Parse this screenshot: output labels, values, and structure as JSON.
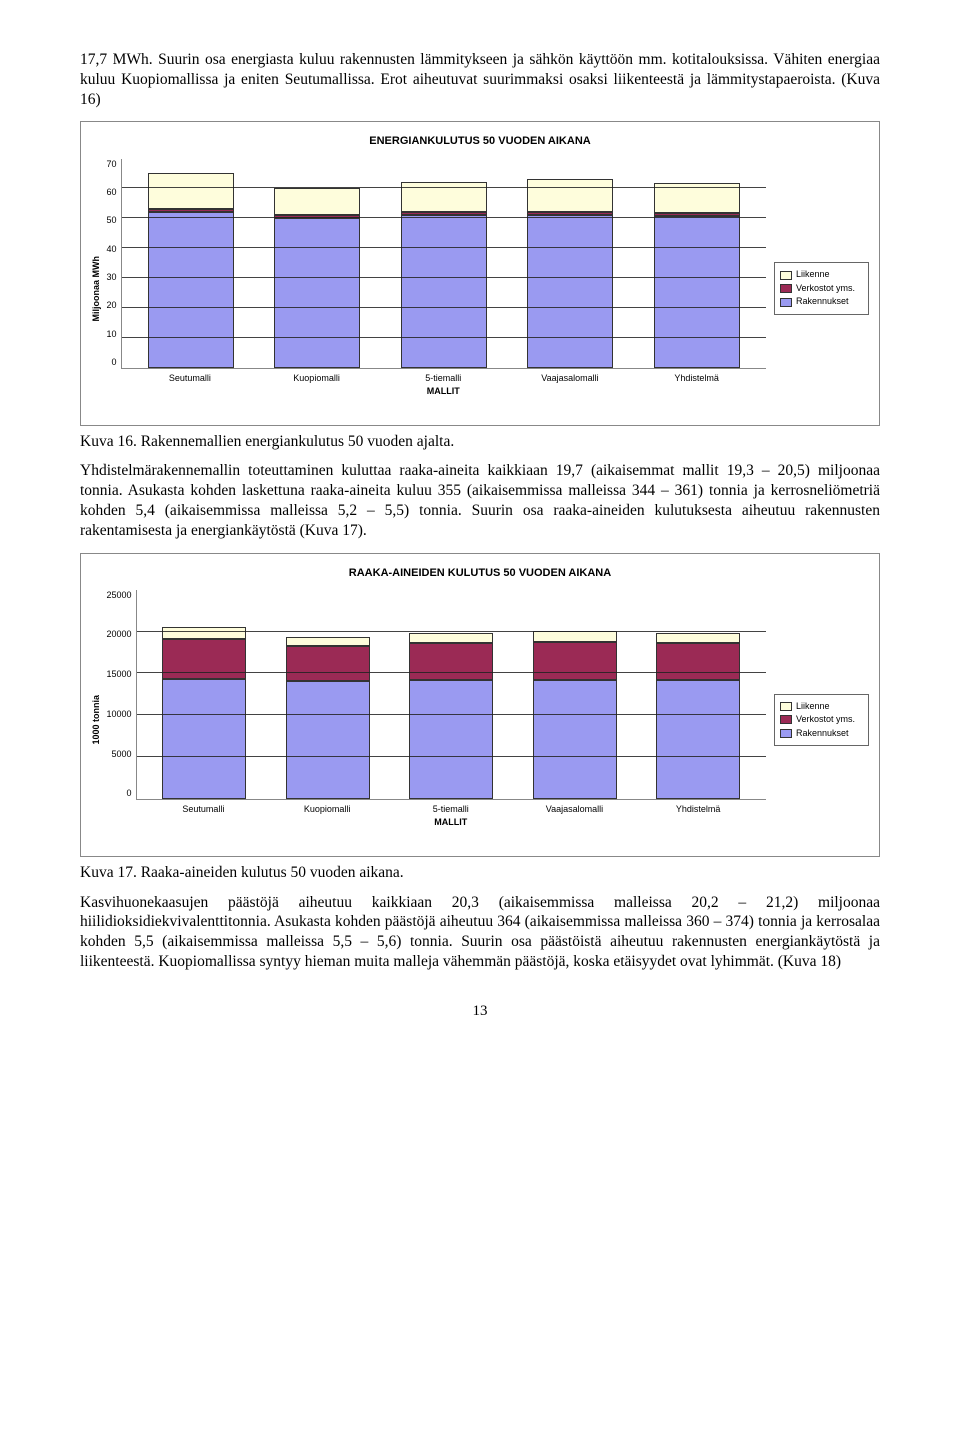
{
  "para1": "17,7 MWh. Suurin osa energiasta kuluu rakennusten lämmitykseen ja sähkön käyttöön mm. kotitalouksissa. Vähiten energiaa kuluu Kuopiomallissa ja eniten Seutumallissa. Erot aiheutuvat suurimmaksi osaksi liikenteestä ja lämmitystapaeroista. (Kuva 16)",
  "caption1": "Kuva 16. Rakennemallien energiankulutus 50 vuoden ajalta.",
  "para2": "Yhdistelmärakennemallin toteuttaminen kuluttaa raaka-aineita kaikkiaan 19,7 (aikaisemmat mallit 19,3 – 20,5) miljoonaa tonnia. Asukasta kohden laskettuna raaka-aineita kuluu 355 (aikaisemmissa malleissa 344 – 361) tonnia ja kerrosneliömetriä kohden 5,4 (aikaisemmissa malleissa 5,2 – 5,5) tonnia. Suurin osa raaka-aineiden kulutuksesta aiheutuu rakennusten rakentamisesta ja energiankäytöstä (Kuva 17).",
  "caption2": "Kuva 17. Raaka-aineiden kulutus 50 vuoden aikana.",
  "para3": "Kasvihuonekaasujen päästöjä aiheutuu kaikkiaan 20,3 (aikaisemmissa malleissa 20,2 – 21,2) miljoonaa hiilidioksidiekvivalenttitonnia. Asukasta kohden päästöjä aiheutuu 364 (aikaisemmissa malleissa 360 – 374) tonnia ja kerrosalaa kohden 5,5 (aikaisemmissa malleissa 5,5 – 5,6) tonnia. Suurin osa päästöistä aiheutuu rakennusten energiankäytöstä ja  liikenteestä. Kuopiomallissa syntyy hieman muita malleja vähemmän päästöjä, koska etäisyydet ovat lyhimmät. (Kuva 18)",
  "page_number": "13",
  "legend": {
    "items": [
      "Liikenne",
      "Verkostot yms.",
      "Rakennukset"
    ],
    "colors": [
      "#fefddc",
      "#9b2a55",
      "#9a9af1"
    ]
  },
  "chart1": {
    "title": "ENERGIANKULUTUS 50 VUODEN AIKANA",
    "ylabel": "Miljoonaa MWh",
    "xlabel": "MALLIT",
    "ymax": 70,
    "yticks": [
      "70",
      "60",
      "50",
      "40",
      "30",
      "20",
      "10",
      "0"
    ],
    "categories": [
      "Seutumalli",
      "Kuopiomalli",
      "5-tiemalli",
      "Vaajasalomalli",
      "Yhdistelmä"
    ],
    "series": [
      {
        "name": "Rakennukset",
        "color": "#9a9af1",
        "values": [
          52,
          50,
          51,
          51,
          50.5
        ]
      },
      {
        "name": "Verkostot yms.",
        "color": "#9b2a55",
        "values": [
          1,
          1,
          1,
          1,
          1
        ]
      },
      {
        "name": "Liikenne",
        "color": "#fefddc",
        "values": [
          12,
          9,
          10,
          11,
          10
        ]
      }
    ]
  },
  "chart2": {
    "title": "RAAKA-AINEIDEN KULUTUS 50 VUODEN AIKANA",
    "ylabel": "1000 tonnia",
    "xlabel": "MALLIT",
    "ymax": 25000,
    "yticks": [
      "25000",
      "20000",
      "15000",
      "10000",
      "5000",
      "0"
    ],
    "categories": [
      "Seutumalli",
      "Kuopiomalli",
      "5-tiemalli",
      "Vaajasalomalli",
      "Yhdistelmä"
    ],
    "series": [
      {
        "name": "Rakennukset",
        "color": "#9a9af1",
        "values": [
          14300,
          14000,
          14100,
          14200,
          14100
        ]
      },
      {
        "name": "Verkostot yms.",
        "color": "#9b2a55",
        "values": [
          4700,
          4200,
          4400,
          4500,
          4400
        ]
      },
      {
        "name": "Liikenne",
        "color": "#fefddc",
        "values": [
          1500,
          1100,
          1200,
          1300,
          1200
        ]
      }
    ]
  }
}
